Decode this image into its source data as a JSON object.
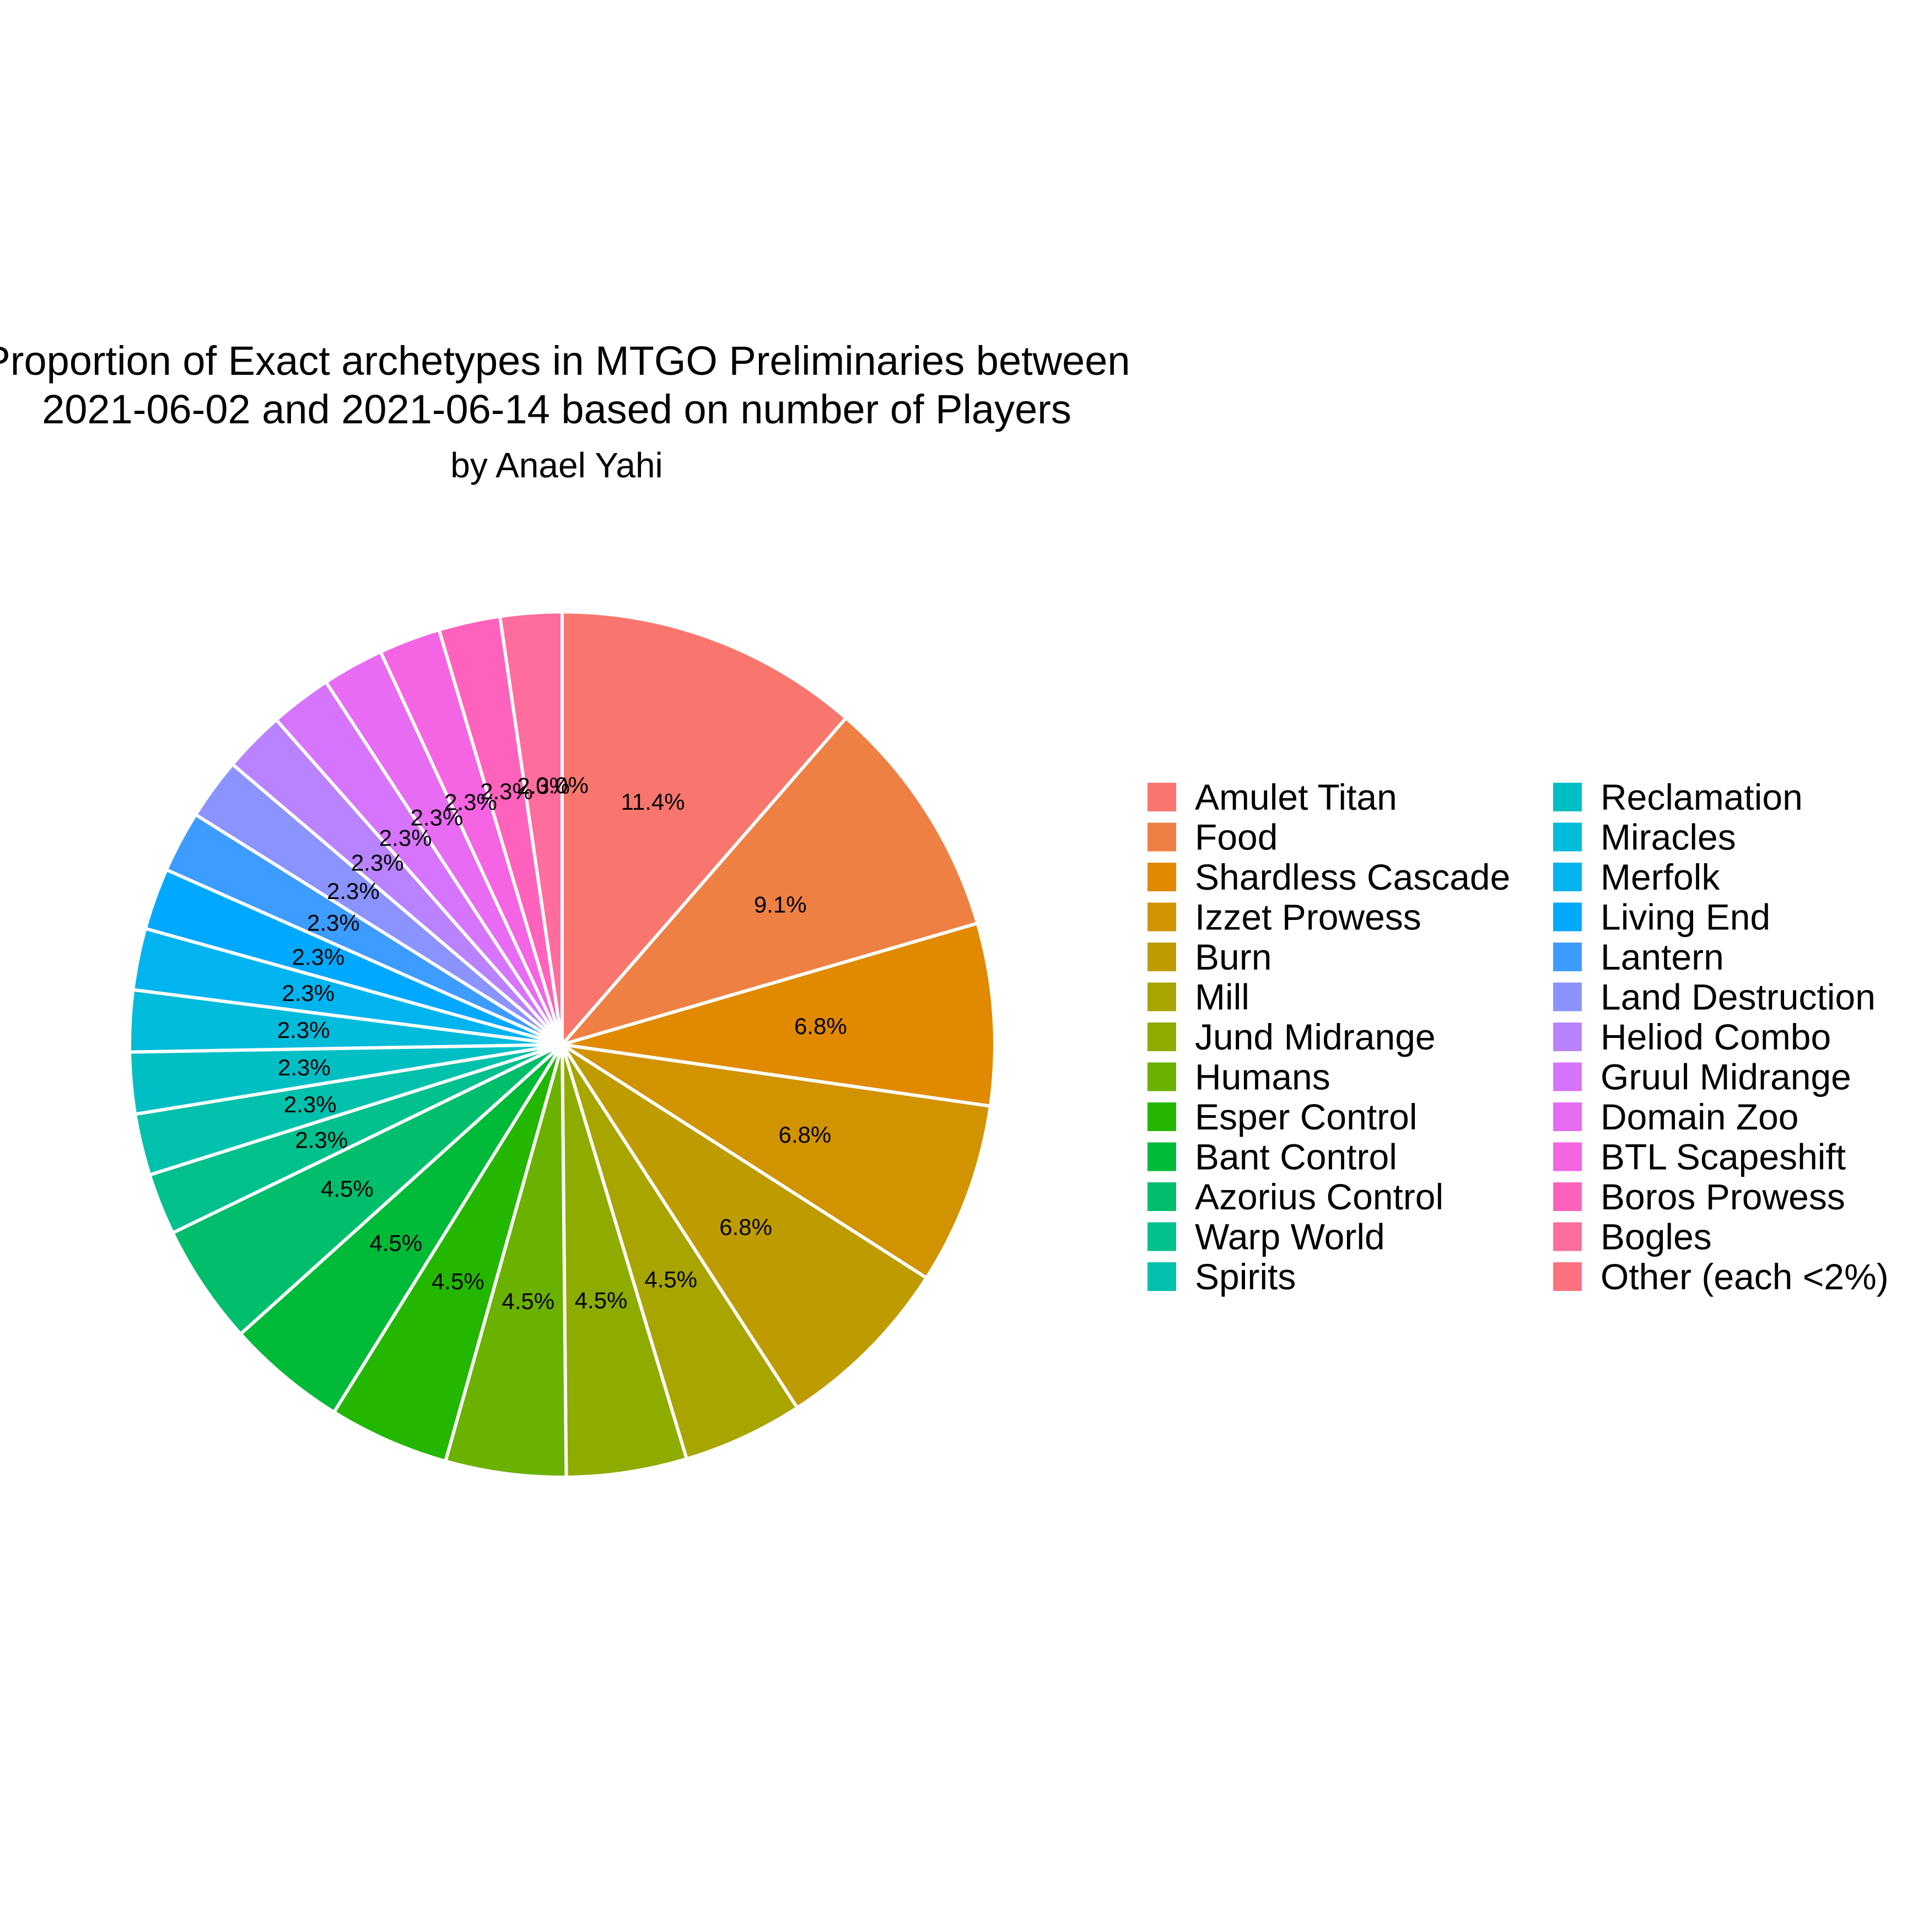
{
  "chart_data": {
    "type": "pie",
    "title_lines": [
      "Proportion of Exact archetypes in MTGO Preliminaries between",
      "2021-06-02 and 2021-06-14 based on number of Players"
    ],
    "subtitle": "by Anael Yahi",
    "slices": [
      {
        "name": "Amulet Titan",
        "value": 11.4,
        "label": "11.4%",
        "color": "#F8766D"
      },
      {
        "name": "Food",
        "value": 9.1,
        "label": "9.1%",
        "color": "#EE8044"
      },
      {
        "name": "Shardless Cascade",
        "value": 6.8,
        "label": "6.8%",
        "color": "#E18A00"
      },
      {
        "name": "Izzet Prowess",
        "value": 6.8,
        "label": "6.8%",
        "color": "#D19300"
      },
      {
        "name": "Burn",
        "value": 6.8,
        "label": "6.8%",
        "color": "#BE9C00"
      },
      {
        "name": "Mill",
        "value": 4.5,
        "label": "4.5%",
        "color": "#A8A400"
      },
      {
        "name": "Jund Midrange",
        "value": 4.5,
        "label": "4.5%",
        "color": "#8EAB00"
      },
      {
        "name": "Humans",
        "value": 4.5,
        "label": "4.5%",
        "color": "#6BB100"
      },
      {
        "name": "Esper Control",
        "value": 4.5,
        "label": "4.5%",
        "color": "#24B700"
      },
      {
        "name": "Bant Control",
        "value": 4.5,
        "label": "4.5%",
        "color": "#00BA38"
      },
      {
        "name": "Azorius Control",
        "value": 4.5,
        "label": "4.5%",
        "color": "#00BE6C"
      },
      {
        "name": "Warp World",
        "value": 2.3,
        "label": "2.3%",
        "color": "#00C08E"
      },
      {
        "name": "Spirits",
        "value": 2.3,
        "label": "2.3%",
        "color": "#00C1AB"
      },
      {
        "name": "Reclamation",
        "value": 2.3,
        "label": "2.3%",
        "color": "#00BFC4"
      },
      {
        "name": "Miracles",
        "value": 2.3,
        "label": "2.3%",
        "color": "#00BBDA"
      },
      {
        "name": "Merfolk",
        "value": 2.3,
        "label": "2.3%",
        "color": "#00B4EF"
      },
      {
        "name": "Living End",
        "value": 2.3,
        "label": "2.3%",
        "color": "#00A9FF"
      },
      {
        "name": "Lantern",
        "value": 2.3,
        "label": "2.3%",
        "color": "#3D9CFF"
      },
      {
        "name": "Land Destruction",
        "value": 2.3,
        "label": "2.3%",
        "color": "#8B93FF"
      },
      {
        "name": "Heliod Combo",
        "value": 2.3,
        "label": "2.3%",
        "color": "#B983FF"
      },
      {
        "name": "Gruul Midrange",
        "value": 2.3,
        "label": "2.3%",
        "color": "#D774FD"
      },
      {
        "name": "Domain Zoo",
        "value": 2.3,
        "label": "2.3%",
        "color": "#E76BF3"
      },
      {
        "name": "BTL Scapeshift",
        "value": 2.3,
        "label": "2.3%",
        "color": "#F564E3"
      },
      {
        "name": "Boros Prowess",
        "value": 2.3,
        "label": "2.3%",
        "color": "#FF62BC"
      },
      {
        "name": "Bogles",
        "value": 2.3,
        "label": "2.3%",
        "color": "#FF6C9E"
      },
      {
        "name": "Other (each <2%)",
        "value": 0.0,
        "label": "0.0%",
        "color": "#FC717F"
      }
    ],
    "legend_position": "right",
    "legend_columns": 2
  }
}
